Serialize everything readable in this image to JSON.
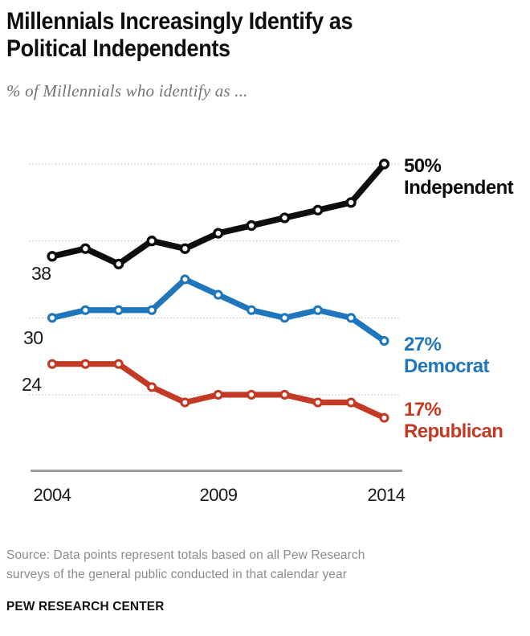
{
  "header": {
    "title_line1": "Millennials Increasingly Identify as",
    "title_line2": "Political Independents",
    "subtitle": "% of Millennials who identify as ..."
  },
  "chart_data": {
    "type": "line",
    "x": [
      2004,
      2005,
      2006,
      2007,
      2008,
      2009,
      2010,
      2011,
      2012,
      2013,
      2014
    ],
    "series": [
      {
        "name": "Independent",
        "color": "#0d0d0d",
        "values": [
          38,
          39,
          37,
          40,
          39,
          41,
          42,
          43,
          44,
          45,
          50
        ],
        "start_label": "38",
        "end_label_pct": "50%",
        "end_label_name": "Independent"
      },
      {
        "name": "Democrat",
        "color": "#1f76bc",
        "values": [
          30,
          31,
          31,
          31,
          35,
          33,
          31,
          30,
          31,
          30,
          27
        ],
        "start_label": "30",
        "end_label_pct": "27%",
        "end_label_name": "Democrat"
      },
      {
        "name": "Republican",
        "color": "#c33a24",
        "values": [
          24,
          24,
          24,
          21,
          19,
          20,
          20,
          20,
          19,
          19,
          17
        ],
        "start_label": "24",
        "end_label_pct": "17%",
        "end_label_name": "Republican"
      }
    ],
    "x_tick_labels": [
      "2004",
      "2009",
      "2014"
    ],
    "gridline_values": [
      50,
      40,
      30,
      20
    ],
    "ylim": [
      10,
      55
    ],
    "grid": "horizontal dotted",
    "legend_position": "line-end labels, right side"
  },
  "footer": {
    "source_line1": "Source: Data points represent totals based on all Pew Research",
    "source_line2": "surveys of the general public conducted in that calendar year",
    "brand": "PEW RESEARCH CENTER"
  }
}
